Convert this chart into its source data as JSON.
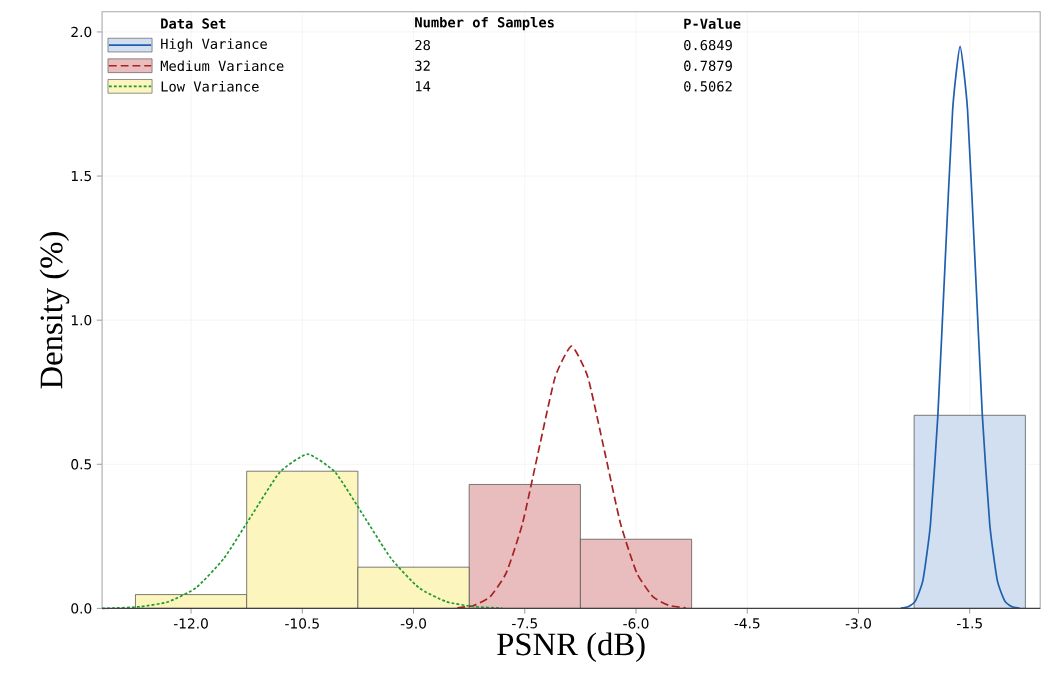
{
  "chart_data": {
    "type": "histogram",
    "xlabel": "PSNR (dB)",
    "ylabel": "Density (%)",
    "xlim": [
      -13.2,
      -0.55
    ],
    "ylim": [
      0,
      2.07
    ],
    "xticks": [
      {
        "value": -12,
        "label": "-12.0"
      },
      -10.5,
      {
        "value": -9,
        "label": "-9.0"
      },
      -7.5,
      {
        "value": -6,
        "label": "-6.0"
      },
      -4.5,
      {
        "value": -3,
        "label": "-3.0"
      },
      -1.5
    ],
    "yticks": [
      {
        "value": 0,
        "label": "0.0"
      },
      0.5,
      {
        "value": 1,
        "label": "1.0"
      },
      1.5,
      {
        "value": 2,
        "label": "2.0"
      }
    ],
    "grid": true,
    "legend": "top left",
    "annotations": [
      "Data Set",
      "Number of Samples",
      "P-Value",
      "28",
      "0.6849",
      "32",
      "0.7879",
      "14",
      "0.5062"
    ],
    "series": [
      {
        "name": "High Variance",
        "color": "#d2dff0",
        "bins": [
          -2.25,
          -0.75
        ],
        "values": [
          0.67
        ]
      },
      {
        "name": "Medium Variance",
        "color": "#e9bdbd",
        "bins": [
          -8.25,
          -6.75,
          -5.25
        ],
        "values": [
          0.43,
          0.24
        ]
      },
      {
        "name": "Low Variance",
        "color": "#fcf5bd",
        "bins": [
          -12.75,
          -11.25,
          -9.75,
          -8.25
        ],
        "values": [
          0.048,
          0.476,
          0.143
        ]
      },
      {
        "type": "line",
        "color": "#1f5fb0",
        "line_style": "solid",
        "x": [
          -2.43,
          -2.33,
          -2.23,
          -2.13,
          -2.03,
          -1.93,
          -1.83,
          -1.73,
          -1.63,
          -1.53,
          -1.43,
          -1.33,
          -1.23,
          -1.13,
          -1.03,
          -0.93,
          -0.83
        ],
        "values": [
          0.001,
          0.006,
          0.027,
          0.099,
          0.291,
          0.669,
          1.211,
          1.732,
          1.95,
          1.732,
          1.211,
          0.669,
          0.291,
          0.099,
          0.027,
          0.006,
          0.001
        ]
      },
      {
        "type": "line",
        "color": "#a52222",
        "line_style": "dashed",
        "x": [
          -8.41,
          -8.19,
          -7.97,
          -7.75,
          -7.53,
          -7.31,
          -7.09,
          -6.87,
          -6.65,
          -6.43,
          -6.21,
          -5.99,
          -5.77,
          -5.55,
          -5.33
        ],
        "values": [
          0.002,
          0.01,
          0.04,
          0.123,
          0.295,
          0.552,
          0.803,
          0.91,
          0.803,
          0.552,
          0.295,
          0.123,
          0.04,
          0.01,
          0.002
        ]
      },
      {
        "type": "line",
        "color": "#1e9a2e",
        "line_style": "dotted",
        "x": [
          -13.2,
          -13.055,
          -12.68,
          -12.305,
          -11.93,
          -11.555,
          -11.18,
          -10.805,
          -10.43,
          -10.055,
          -9.68,
          -9.305,
          -8.93,
          -8.555,
          -8.18,
          -7.805
        ],
        "values": [
          0.0,
          0.001,
          0.006,
          0.023,
          0.072,
          0.174,
          0.324,
          0.472,
          0.535,
          0.472,
          0.324,
          0.174,
          0.072,
          0.023,
          0.006,
          0.001
        ]
      }
    ]
  }
}
